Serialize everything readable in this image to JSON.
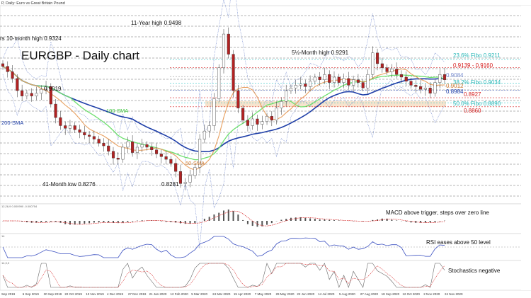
{
  "chart_data": {
    "type": "candlestick",
    "header": "P, Daily: Euro vs Great Britain Pound",
    "title": "EURGBP - Daily chart",
    "colors": {
      "up": "#ffffff",
      "down": "#b22222",
      "sma50": "#e8a060",
      "sma100": "#6ee06e",
      "sma200": "#1f3fa8",
      "bollinger": "#7a8fd0",
      "fibo": "#38c7c7",
      "resistance": "#d62020",
      "grid": "#555555"
    },
    "x_labels": [
      "Sep 2019",
      "6 Sep 2019",
      "30 Sep 2019",
      "22 Oct 2019",
      "13 Nov 2019",
      "4 Dec 2019",
      "27 Dec 2019",
      "21 Jan 2020",
      "12 Feb 2020",
      "5 Mar 2020",
      "24 Mar 2020",
      "15 Apr 2020",
      "7 May 2020",
      "29 May 2020",
      "22 Jun 2020",
      "14 Jul 2020",
      "5 Aug 2020",
      "27 Aug 2020",
      "18 Sep 2020",
      "12 Oct 2020",
      "2 Nov 2020",
      "24 Nov 2020"
    ],
    "close_series": [
      0.916,
      0.912,
      0.907,
      0.898,
      0.894,
      0.896,
      0.894,
      0.896,
      0.899,
      0.901,
      0.888,
      0.878,
      0.872,
      0.87,
      0.872,
      0.869,
      0.867,
      0.865,
      0.864,
      0.862,
      0.859,
      0.857,
      0.853,
      0.848,
      0.847,
      0.856,
      0.86,
      0.852,
      0.856,
      0.858,
      0.856,
      0.854,
      0.851,
      0.849,
      0.847,
      0.844,
      0.838,
      0.829,
      0.83,
      0.835,
      0.841,
      0.862,
      0.868,
      0.872,
      0.892,
      0.915,
      0.94,
      0.925,
      0.898,
      0.885,
      0.876,
      0.872,
      0.877,
      0.873,
      0.875,
      0.879,
      0.876,
      0.885,
      0.89,
      0.898,
      0.9,
      0.902,
      0.903,
      0.901,
      0.905,
      0.908,
      0.906,
      0.91,
      0.904,
      0.908,
      0.904,
      0.907,
      0.902,
      0.906,
      0.904,
      0.9,
      0.91,
      0.926,
      0.918,
      0.915,
      0.912,
      0.914,
      0.91,
      0.908,
      0.905,
      0.902,
      0.901,
      0.899,
      0.9,
      0.896,
      0.904,
      0.91,
      0.906
    ],
    "series": [
      {
        "name": "100-SMA"
      },
      {
        "name": "200-SMA"
      },
      {
        "name": "50-SMA"
      }
    ],
    "annotations": {
      "eleven_year_high": "11-Year high 0.9498",
      "ten_month_high": "rs 10-month high 0.9324",
      "five_month_high": "5½-Month high 0.9291",
      "low_41_month": "41-Month low 0.8276",
      "low_8281": "0.8281",
      "level_9019": "0.9019"
    },
    "levels": [
      {
        "label": "23.6% Fibo 0.9211",
        "value": 0.9211,
        "kind": "fibo"
      },
      {
        "label": "0.9139 - 0.9160",
        "value": 0.915,
        "kind": "resistance-band"
      },
      {
        "label": "0.9084",
        "value": 0.9084,
        "kind": "plain"
      },
      {
        "label": "38.2% Fibo 0.9034",
        "value": 0.9034,
        "kind": "fibo"
      },
      {
        "label": "0.9012",
        "value": 0.9012,
        "kind": "plain"
      },
      {
        "label": "0.8984",
        "value": 0.8984,
        "kind": "sma200"
      },
      {
        "label": "0.8927",
        "value": 0.8927,
        "kind": "resistance"
      },
      {
        "label": "50.0% Fibo 0.8890",
        "value": 0.889,
        "kind": "fibo"
      },
      {
        "label": "0.8860",
        "value": 0.886,
        "kind": "resistance"
      }
    ],
    "indicators": [
      {
        "name": "MACD",
        "params": "12,26,9  0.000990  -0.000754",
        "comment": "MACD above trigger, steps over zero line"
      },
      {
        "name": "RSI",
        "params": "14",
        "comment": "RSI eases above 50 level"
      },
      {
        "name": "Stochastics",
        "params": "14,3,3",
        "comment": "Stochastics negative"
      }
    ]
  }
}
